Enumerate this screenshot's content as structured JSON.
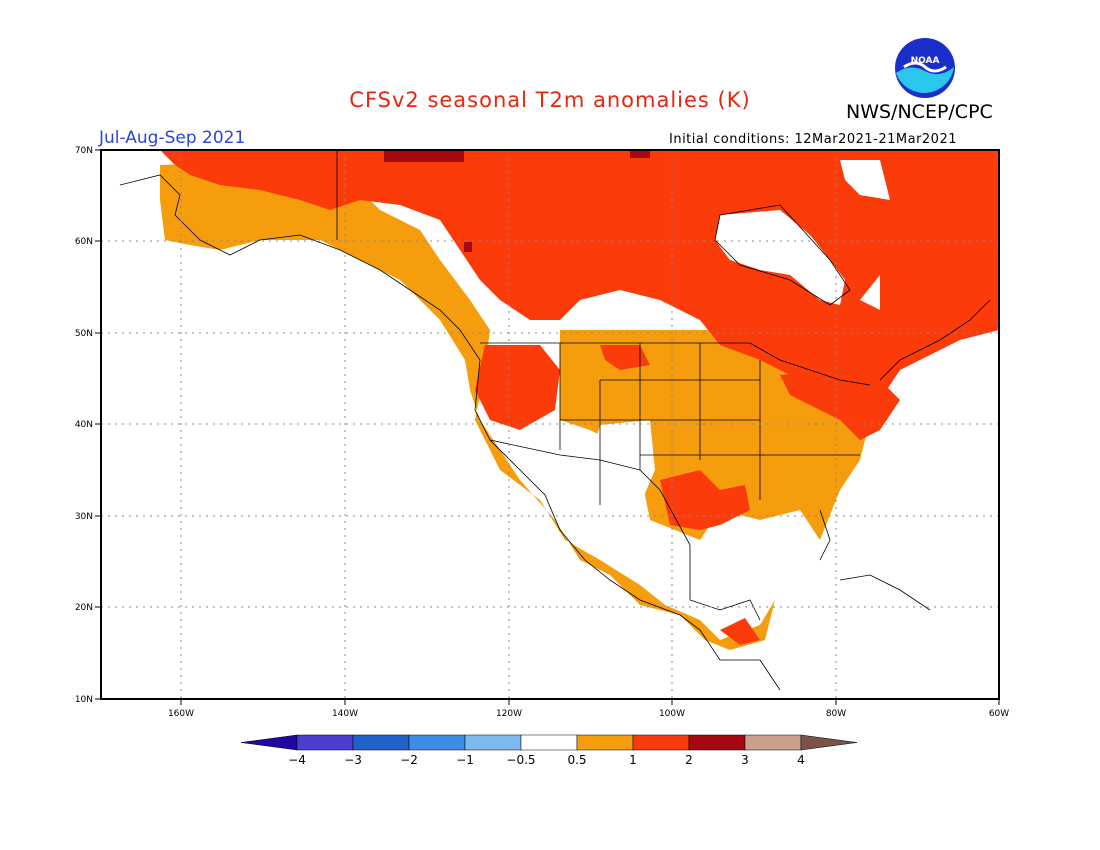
{
  "title": "CFSv2 seasonal T2m anomalies (K)",
  "organization": "NWS/NCEP/CPC",
  "logo_text": "NOAA",
  "period": "Jul-Aug-Sep 2021",
  "initial_conditions": "Initial conditions: 12Mar2021-21Mar2021",
  "map": {
    "lon_range": [
      -170,
      -60
    ],
    "lat_range": [
      10,
      70
    ],
    "lon_ticks": [
      "160W",
      "140W",
      "120W",
      "100W",
      "80W",
      "60W"
    ],
    "lat_ticks": [
      "70N",
      "60N",
      "50N",
      "40N",
      "30N",
      "20N",
      "10N"
    ],
    "grid": "dotted",
    "anomaly_regions": [
      {
        "region": "Alaska interior",
        "range": "0.5 to 1"
      },
      {
        "region": "Northern Alaska / Arctic coast",
        "range": "1 to 2"
      },
      {
        "region": "Canada (most)",
        "range": "1 to 2"
      },
      {
        "region": "Hudson Bay",
        "range": "-0.5 to 0.5"
      },
      {
        "region": "Canadian prairies",
        "range": "0.5 to 1"
      },
      {
        "region": "US Pacific Northwest / Great Basin",
        "range": "1 to 2"
      },
      {
        "region": "Four Corners / New Mexico",
        "range": "-0.5 to 0.5"
      },
      {
        "region": "Central / Eastern US",
        "range": "0.5 to 1"
      },
      {
        "region": "Texas / Lower Mississippi",
        "range": "1 to 2"
      },
      {
        "region": "Northeast US / Great Lakes",
        "range": "1 to 2"
      },
      {
        "region": "Mexico",
        "range": "0.5 to 1"
      },
      {
        "region": "Central America / Caribbean",
        "range": "-0.5 to 0.5"
      }
    ]
  },
  "colorbar": {
    "labels": [
      "-4",
      "-3",
      "-2",
      "-1",
      "-0.5",
      "0.5",
      "1",
      "2",
      "3",
      "4"
    ],
    "colors": [
      "#1e08a0",
      "#4b3fd0",
      "#1f62c8",
      "#3d8ce6",
      "#7eb9f0",
      "#ffffff",
      "#f59d0c",
      "#fb3b0a",
      "#a60a10",
      "#c8a08e",
      "#7a5448"
    ]
  }
}
